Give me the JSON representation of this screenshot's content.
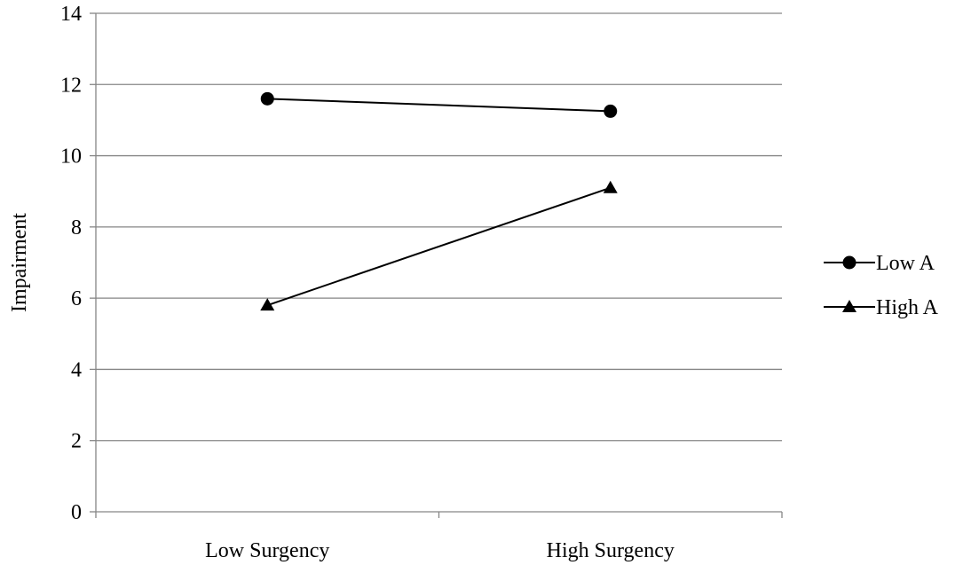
{
  "chart_data": {
    "type": "line",
    "title": "",
    "xlabel": "",
    "ylabel": "Impairment",
    "categories": [
      "Low Surgency",
      "High Surgency"
    ],
    "ylim": [
      0,
      14
    ],
    "yticks": [
      0,
      2,
      4,
      6,
      8,
      10,
      12,
      14
    ],
    "grid": true,
    "legend_position": "right",
    "series": [
      {
        "name": "Low A",
        "marker": "circle",
        "values": [
          11.6,
          11.25
        ],
        "color": "#000000"
      },
      {
        "name": "High A",
        "marker": "triangle",
        "values": [
          5.8,
          9.1
        ],
        "color": "#000000"
      }
    ]
  }
}
